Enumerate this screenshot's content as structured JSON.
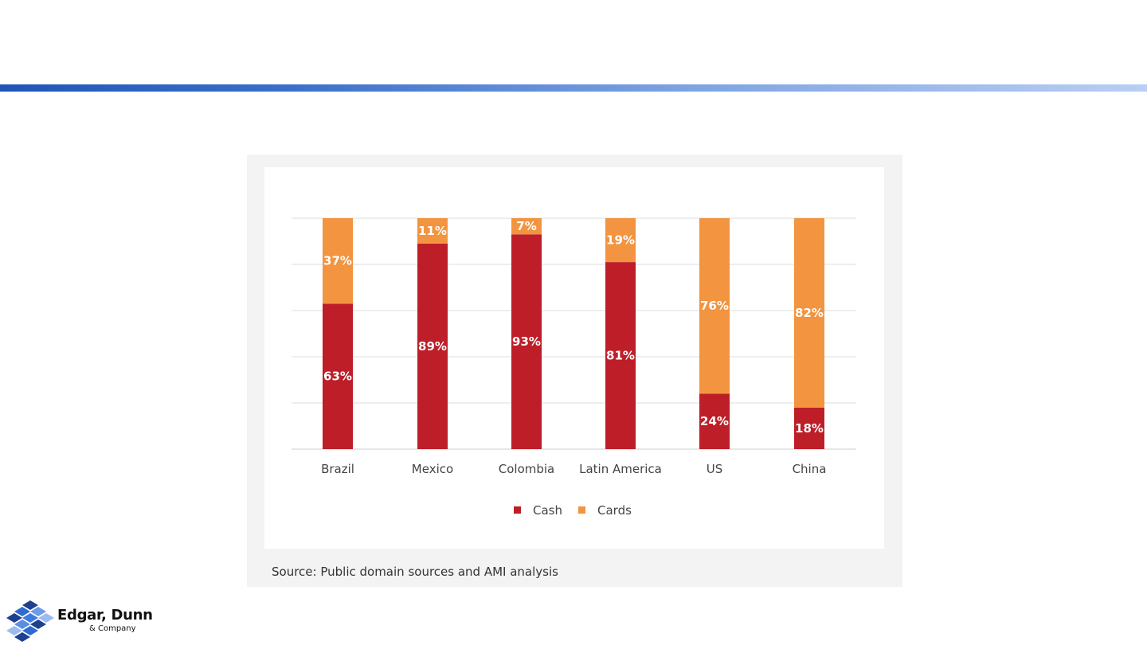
{
  "chart_data": {
    "type": "bar",
    "stacked": true,
    "categories": [
      "Brazil",
      "Mexico",
      "Colombia",
      "Latin America",
      "US",
      "China"
    ],
    "series": [
      {
        "name": "Cash",
        "values": [
          63,
          89,
          93,
          81,
          24,
          18
        ],
        "labels": [
          "63%",
          "89%",
          "93%",
          "81%",
          "24%",
          "18%"
        ],
        "color": "#bd1e28"
      },
      {
        "name": "Cards",
        "values": [
          37,
          11,
          7,
          19,
          76,
          82
        ],
        "labels": [
          "37%",
          "11%",
          "7%",
          "19%",
          "76%",
          "82%"
        ],
        "color": "#f29440"
      }
    ],
    "ylim": [
      0,
      100
    ],
    "grid": true,
    "legend": "bottom-center"
  },
  "source": "Source: Public domain sources and AMI analysis",
  "logo": {
    "name": "Edgar, Dunn",
    "sub": "& Company"
  },
  "colors": {
    "accent_bar_start": "#1f55b8",
    "accent_bar_end": "#b9cff3",
    "grid": "#dddddd",
    "label_text": "#ffffff",
    "axis_text": "#444444"
  }
}
